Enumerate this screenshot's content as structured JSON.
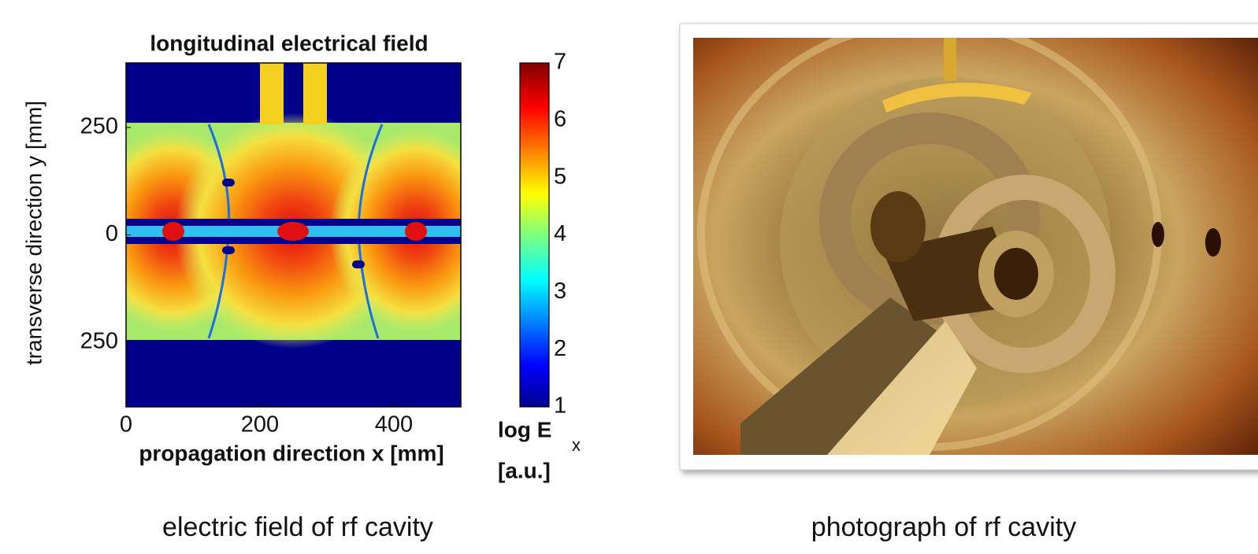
{
  "chart_data": {
    "type": "heatmap",
    "title": "longitudinal electrical field",
    "x_label": "propagation direction x [mm]",
    "y_label": "transverse direction y [mm]",
    "xlim": [
      0,
      500
    ],
    "xticks": [
      0,
      200,
      400
    ],
    "ylim": [
      -400,
      400
    ],
    "yticks": [
      {
        "value": -250,
        "label": "250"
      },
      0,
      250
    ],
    "colorbar": {
      "label": "log E",
      "label_subscript": "x",
      "unit": "[a.u.]",
      "lim": [
        1,
        7
      ],
      "ticks": [
        1,
        2,
        3,
        4,
        5,
        6,
        7
      ]
    },
    "caption": "electric field of rf cavity"
  },
  "photo": {
    "caption": "photograph of rf cavity"
  }
}
